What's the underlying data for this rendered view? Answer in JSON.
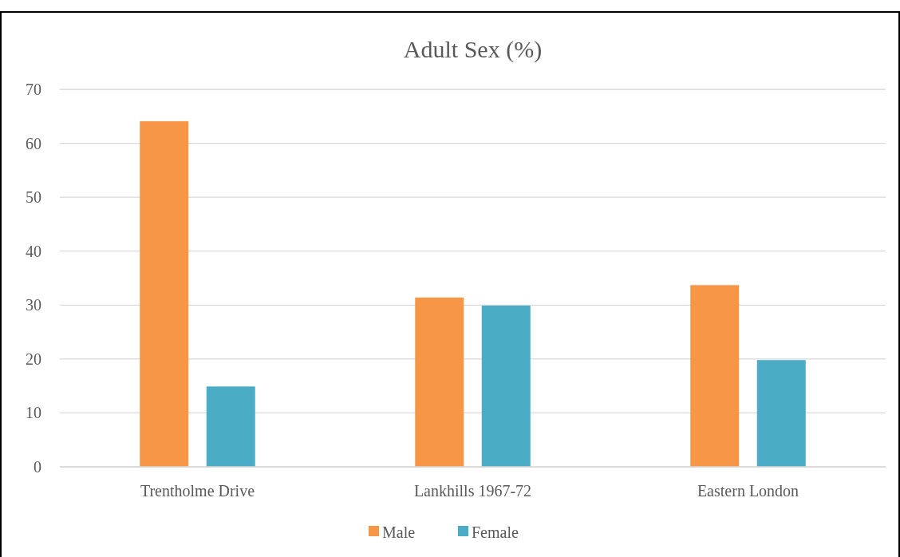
{
  "chart_data": {
    "type": "bar",
    "title": "Adult Sex (%)",
    "categories": [
      "Trentholme Drive",
      "Lankhills 1967-72",
      "Eastern London"
    ],
    "series": [
      {
        "name": "Male",
        "color": "#f79646",
        "values": [
          64.1,
          31.4,
          33.7
        ]
      },
      {
        "name": "Female",
        "color": "#4bacc6",
        "values": [
          14.9,
          29.9,
          19.8
        ]
      }
    ],
    "ylim": [
      0,
      70
    ],
    "yticks": [
      0,
      10,
      20,
      30,
      40,
      50,
      60,
      70
    ],
    "grid": "y",
    "legend": "bottom"
  }
}
